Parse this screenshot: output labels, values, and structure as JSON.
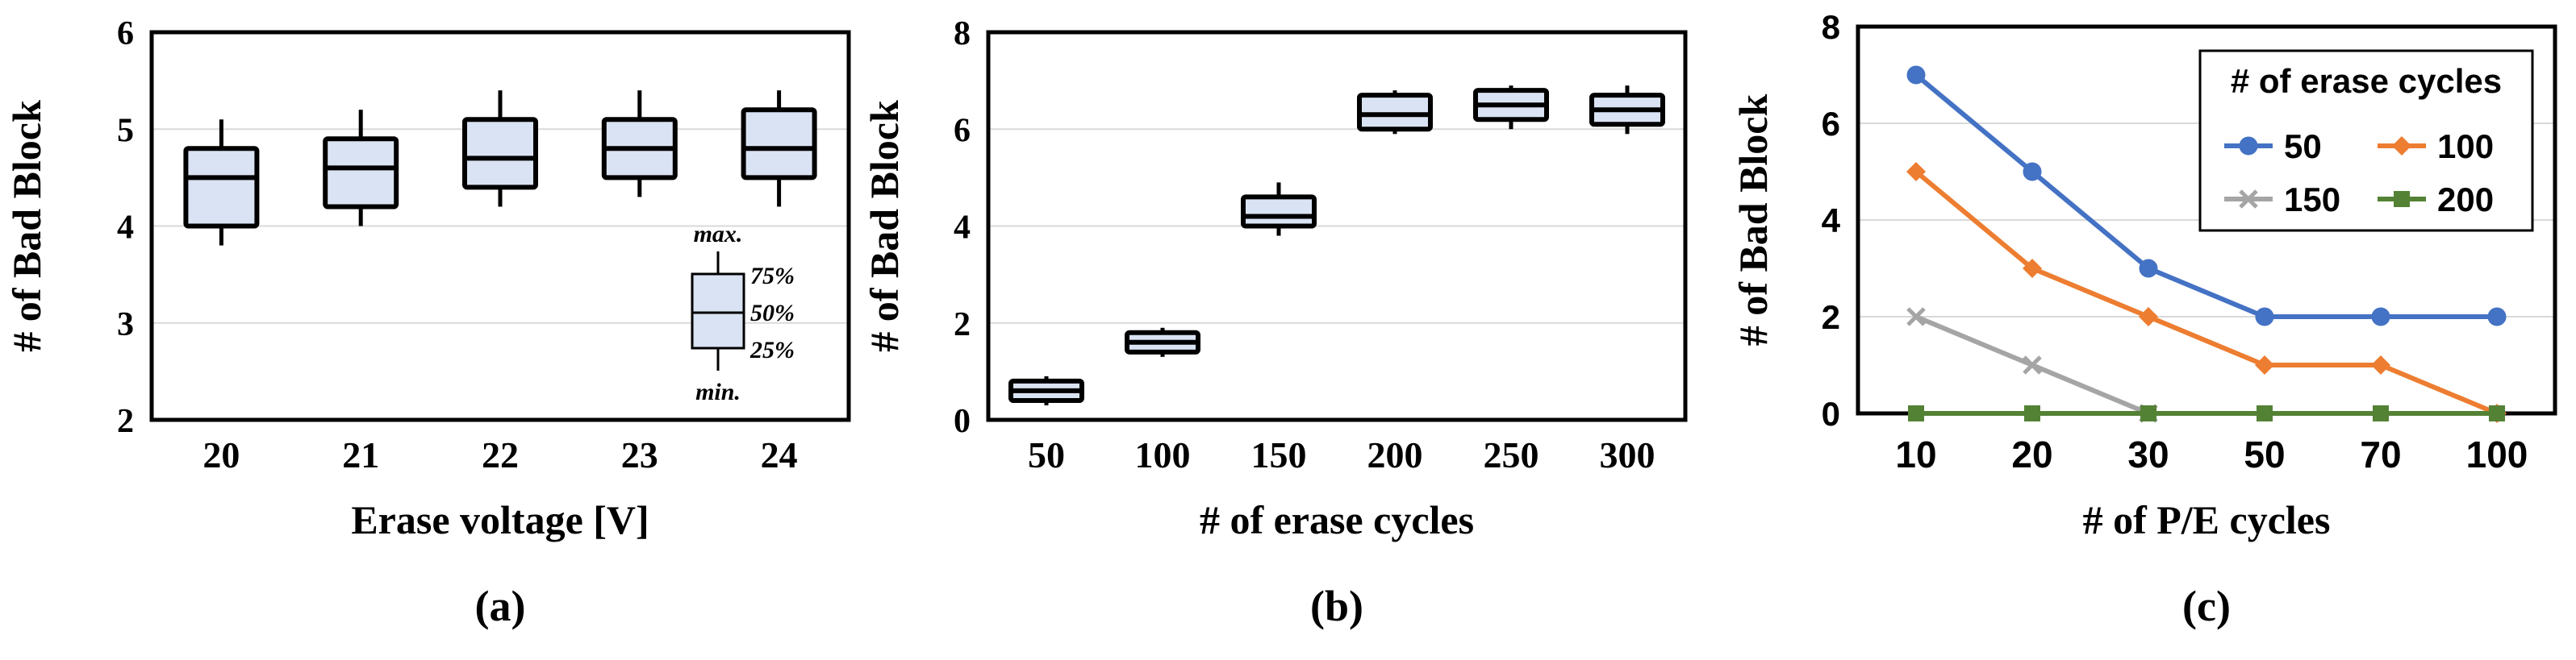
{
  "chart_data": [
    {
      "type": "box",
      "panel_label": "(a)",
      "xlabel": "Erase voltage [V]",
      "ylabel": "# of Bad Block",
      "ylim": [
        2,
        6
      ],
      "yticks": [
        "2",
        "3",
        "4",
        "5",
        "6"
      ],
      "grid": true,
      "categories": [
        "20",
        "21",
        "22",
        "23",
        "24"
      ],
      "boxes": [
        {
          "min": 3.8,
          "q1": 4.0,
          "median": 4.5,
          "q3": 4.8,
          "max": 5.1
        },
        {
          "min": 4.0,
          "q1": 4.2,
          "median": 4.6,
          "q3": 4.9,
          "max": 5.2
        },
        {
          "min": 4.2,
          "q1": 4.4,
          "median": 4.7,
          "q3": 5.1,
          "max": 5.4
        },
        {
          "min": 4.3,
          "q1": 4.5,
          "median": 4.8,
          "q3": 5.1,
          "max": 5.4
        },
        {
          "min": 4.2,
          "q1": 4.5,
          "median": 4.8,
          "q3": 5.2,
          "max": 5.4
        }
      ],
      "legend_key": {
        "max": "max.",
        "q3": "75%",
        "median": "50%",
        "q1": "25%",
        "min": "min."
      },
      "colors": {
        "box_fill": "#dae3f3",
        "stroke": "#000000",
        "grid": "#d9d9d9"
      }
    },
    {
      "type": "box",
      "panel_label": "(b)",
      "xlabel": "# of erase cycles",
      "ylabel": "# of Bad Block",
      "ylim": [
        0,
        8
      ],
      "yticks": [
        "0",
        "2",
        "4",
        "6",
        "8"
      ],
      "grid": true,
      "categories": [
        "50",
        "100",
        "150",
        "200",
        "250",
        "300"
      ],
      "boxes": [
        {
          "min": 0.3,
          "q1": 0.4,
          "median": 0.6,
          "q3": 0.8,
          "max": 0.9
        },
        {
          "min": 1.3,
          "q1": 1.4,
          "median": 1.6,
          "q3": 1.8,
          "max": 1.9
        },
        {
          "min": 3.8,
          "q1": 4.0,
          "median": 4.2,
          "q3": 4.6,
          "max": 4.9
        },
        {
          "min": 5.9,
          "q1": 6.0,
          "median": 6.3,
          "q3": 6.7,
          "max": 6.8
        },
        {
          "min": 6.0,
          "q1": 6.2,
          "median": 6.5,
          "q3": 6.8,
          "max": 6.9
        },
        {
          "min": 5.9,
          "q1": 6.1,
          "median": 6.4,
          "q3": 6.7,
          "max": 6.9
        }
      ],
      "colors": {
        "box_fill": "#dae3f3",
        "stroke": "#000000",
        "grid": "#d9d9d9"
      }
    },
    {
      "type": "line",
      "panel_label": "(c)",
      "xlabel": "# of P/E cycles",
      "ylabel": "# of Bad Block",
      "ylim": [
        0,
        8
      ],
      "yticks": [
        "0",
        "2",
        "4",
        "6",
        "8"
      ],
      "grid": true,
      "categories": [
        "10",
        "20",
        "30",
        "50",
        "70",
        "100"
      ],
      "legend_title": "# of erase cycles",
      "legend_position": "top-right",
      "series": [
        {
          "name": "50",
          "marker": "circle",
          "color": "#4472c4",
          "values": [
            7,
            5,
            3,
            2,
            2,
            2
          ]
        },
        {
          "name": "100",
          "marker": "diamond",
          "color": "#ed7d31",
          "values": [
            5,
            3,
            2,
            1,
            1,
            0
          ]
        },
        {
          "name": "150",
          "marker": "x",
          "color": "#a5a5a5",
          "values": [
            2,
            1,
            0,
            null,
            null,
            null
          ]
        },
        {
          "name": "200",
          "marker": "square",
          "color": "#548235",
          "values": [
            0,
            0,
            0,
            0,
            0,
            0
          ]
        }
      ]
    }
  ]
}
